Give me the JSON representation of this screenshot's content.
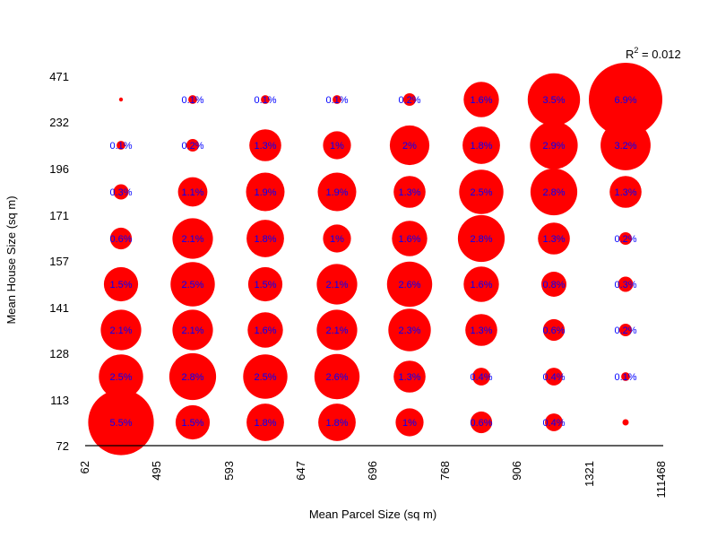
{
  "chart_data": {
    "type": "scatter",
    "subtype": "bubble-grid",
    "xlabel": "Mean Parcel Size (sq m)",
    "ylabel": "Mean House Size (sq m)",
    "x_ticks": [
      "62",
      "495",
      "593",
      "647",
      "696",
      "768",
      "906",
      "1321",
      "111468"
    ],
    "y_ticks": [
      "72",
      "113",
      "128",
      "141",
      "157",
      "171",
      "196",
      "232",
      "471"
    ],
    "annotation": {
      "prefix": "R",
      "sup": "2",
      "suffix": " = 0.012"
    },
    "colors": {
      "bubble": "#ff0000",
      "label": "#0000ff",
      "axis": "#000000"
    },
    "grid": false,
    "legend": "none",
    "cells": [
      {
        "col": 0,
        "row": 0,
        "value": 5.5,
        "label": "5.5%"
      },
      {
        "col": 1,
        "row": 0,
        "value": 1.5,
        "label": "1.5%"
      },
      {
        "col": 2,
        "row": 0,
        "value": 1.8,
        "label": "1.8%"
      },
      {
        "col": 3,
        "row": 0,
        "value": 1.8,
        "label": "1.8%"
      },
      {
        "col": 4,
        "row": 0,
        "value": 1.0,
        "label": "1%"
      },
      {
        "col": 5,
        "row": 0,
        "value": 0.6,
        "label": "0.6%"
      },
      {
        "col": 6,
        "row": 0,
        "value": 0.4,
        "label": "0.4%"
      },
      {
        "col": 7,
        "row": 0,
        "value": 0.05,
        "label": ""
      },
      {
        "col": 0,
        "row": 1,
        "value": 2.5,
        "label": "2.5%"
      },
      {
        "col": 1,
        "row": 1,
        "value": 2.8,
        "label": "2.8%"
      },
      {
        "col": 2,
        "row": 1,
        "value": 2.5,
        "label": "2.5%"
      },
      {
        "col": 3,
        "row": 1,
        "value": 2.6,
        "label": "2.6%"
      },
      {
        "col": 4,
        "row": 1,
        "value": 1.3,
        "label": "1.3%"
      },
      {
        "col": 5,
        "row": 1,
        "value": 0.4,
        "label": "0.4%"
      },
      {
        "col": 6,
        "row": 1,
        "value": 0.4,
        "label": "0.4%"
      },
      {
        "col": 7,
        "row": 1,
        "value": 0.1,
        "label": "0.1%"
      },
      {
        "col": 0,
        "row": 2,
        "value": 2.1,
        "label": "2.1%"
      },
      {
        "col": 1,
        "row": 2,
        "value": 2.1,
        "label": "2.1%"
      },
      {
        "col": 2,
        "row": 2,
        "value": 1.6,
        "label": "1.6%"
      },
      {
        "col": 3,
        "row": 2,
        "value": 2.1,
        "label": "2.1%"
      },
      {
        "col": 4,
        "row": 2,
        "value": 2.3,
        "label": "2.3%"
      },
      {
        "col": 5,
        "row": 2,
        "value": 1.3,
        "label": "1.3%"
      },
      {
        "col": 6,
        "row": 2,
        "value": 0.6,
        "label": "0.6%"
      },
      {
        "col": 7,
        "row": 2,
        "value": 0.2,
        "label": "0.2%"
      },
      {
        "col": 0,
        "row": 3,
        "value": 1.5,
        "label": "1.5%"
      },
      {
        "col": 1,
        "row": 3,
        "value": 2.5,
        "label": "2.5%"
      },
      {
        "col": 2,
        "row": 3,
        "value": 1.5,
        "label": "1.5%"
      },
      {
        "col": 3,
        "row": 3,
        "value": 2.1,
        "label": "2.1%"
      },
      {
        "col": 4,
        "row": 3,
        "value": 2.6,
        "label": "2.6%"
      },
      {
        "col": 5,
        "row": 3,
        "value": 1.6,
        "label": "1.6%"
      },
      {
        "col": 6,
        "row": 3,
        "value": 0.8,
        "label": "0.8%"
      },
      {
        "col": 7,
        "row": 3,
        "value": 0.3,
        "label": "0.3%"
      },
      {
        "col": 0,
        "row": 4,
        "value": 0.6,
        "label": "0.6%"
      },
      {
        "col": 1,
        "row": 4,
        "value": 2.1,
        "label": "2.1%"
      },
      {
        "col": 2,
        "row": 4,
        "value": 1.8,
        "label": "1.8%"
      },
      {
        "col": 3,
        "row": 4,
        "value": 1.0,
        "label": "1%"
      },
      {
        "col": 4,
        "row": 4,
        "value": 1.6,
        "label": "1.6%"
      },
      {
        "col": 5,
        "row": 4,
        "value": 2.8,
        "label": "2.8%"
      },
      {
        "col": 6,
        "row": 4,
        "value": 1.3,
        "label": "1.3%"
      },
      {
        "col": 7,
        "row": 4,
        "value": 0.2,
        "label": "0.2%"
      },
      {
        "col": 0,
        "row": 5,
        "value": 0.3,
        "label": "0.3%"
      },
      {
        "col": 1,
        "row": 5,
        "value": 1.1,
        "label": "1.1%"
      },
      {
        "col": 2,
        "row": 5,
        "value": 1.9,
        "label": "1.9%"
      },
      {
        "col": 3,
        "row": 5,
        "value": 1.9,
        "label": "1.9%"
      },
      {
        "col": 4,
        "row": 5,
        "value": 1.3,
        "label": "1.3%"
      },
      {
        "col": 5,
        "row": 5,
        "value": 2.5,
        "label": "2.5%"
      },
      {
        "col": 6,
        "row": 5,
        "value": 2.8,
        "label": "2.8%"
      },
      {
        "col": 7,
        "row": 5,
        "value": 1.3,
        "label": "1.3%"
      },
      {
        "col": 0,
        "row": 6,
        "value": 0.1,
        "label": "0.1%"
      },
      {
        "col": 1,
        "row": 6,
        "value": 0.2,
        "label": "0.2%"
      },
      {
        "col": 2,
        "row": 6,
        "value": 1.3,
        "label": "1.3%"
      },
      {
        "col": 3,
        "row": 6,
        "value": 1.0,
        "label": "1%"
      },
      {
        "col": 4,
        "row": 6,
        "value": 2.0,
        "label": "2%"
      },
      {
        "col": 5,
        "row": 6,
        "value": 1.8,
        "label": "1.8%"
      },
      {
        "col": 6,
        "row": 6,
        "value": 2.9,
        "label": "2.9%"
      },
      {
        "col": 7,
        "row": 6,
        "value": 3.2,
        "label": "3.2%"
      },
      {
        "col": 0,
        "row": 7,
        "value": 0.02,
        "label": ""
      },
      {
        "col": 1,
        "row": 7,
        "value": 0.1,
        "label": "0.1%"
      },
      {
        "col": 2,
        "row": 7,
        "value": 0.1,
        "label": "0.1%"
      },
      {
        "col": 3,
        "row": 7,
        "value": 0.1,
        "label": "0.1%"
      },
      {
        "col": 4,
        "row": 7,
        "value": 0.2,
        "label": "0.2%"
      },
      {
        "col": 5,
        "row": 7,
        "value": 1.6,
        "label": "1.6%"
      },
      {
        "col": 6,
        "row": 7,
        "value": 3.5,
        "label": "3.5%"
      },
      {
        "col": 7,
        "row": 7,
        "value": 6.9,
        "label": "6.9%"
      }
    ]
  }
}
